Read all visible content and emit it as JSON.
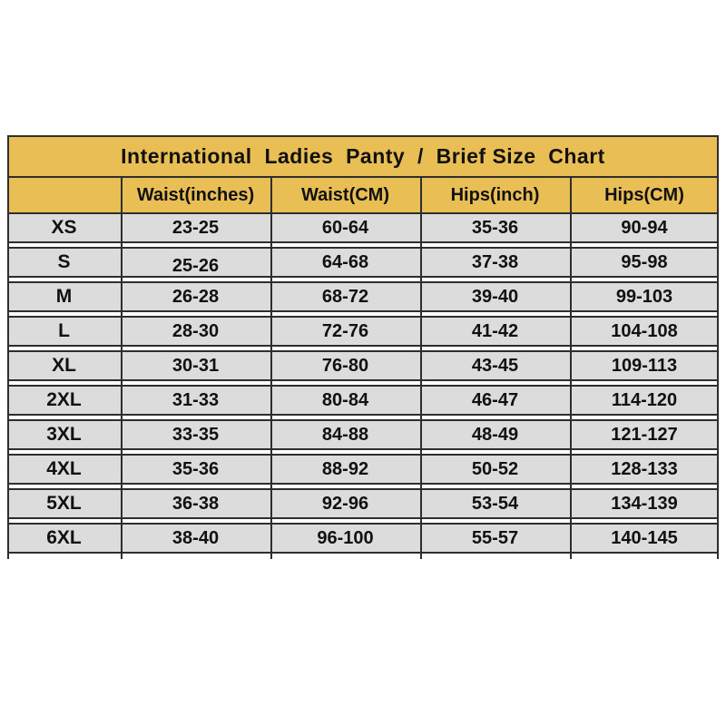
{
  "chart_data": {
    "type": "table",
    "title": "International  Ladies  Panty  /  Brief Size  Chart",
    "columns": [
      "",
      "Waist(inches)",
      "Waist(CM)",
      "Hips(inch)",
      "Hips(CM)"
    ],
    "rows": [
      [
        "XS",
        "23-25",
        "60-64",
        "35-36",
        "90-94"
      ],
      [
        "S",
        "25-26",
        "64-68",
        "37-38",
        "95-98"
      ],
      [
        "M",
        "26-28",
        "68-72",
        "39-40",
        "99-103"
      ],
      [
        "L",
        "28-30",
        "72-76",
        "41-42",
        "104-108"
      ],
      [
        "XL",
        "30-31",
        "76-80",
        "43-45",
        "109-113"
      ],
      [
        "2XL",
        "31-33",
        "80-84",
        "46-47",
        "114-120"
      ],
      [
        "3XL",
        "33-35",
        "84-88",
        "48-49",
        "121-127"
      ],
      [
        "4XL",
        "35-36",
        "88-92",
        "50-52",
        "128-133"
      ],
      [
        "5XL",
        "36-38",
        "92-96",
        "53-54",
        "134-139"
      ],
      [
        "6XL",
        "38-40",
        "96-100",
        "55-57",
        "140-145"
      ]
    ],
    "layout_hints": {
      "legend": "none",
      "grid": "row and column rules, white gaps between body rows"
    },
    "colors": {
      "header_gold": "#e9bf55",
      "row_gray": "#dcdcdc",
      "border_dark": "#2e2e2e",
      "gap_white": "#ffffff",
      "text": "#111111"
    }
  }
}
